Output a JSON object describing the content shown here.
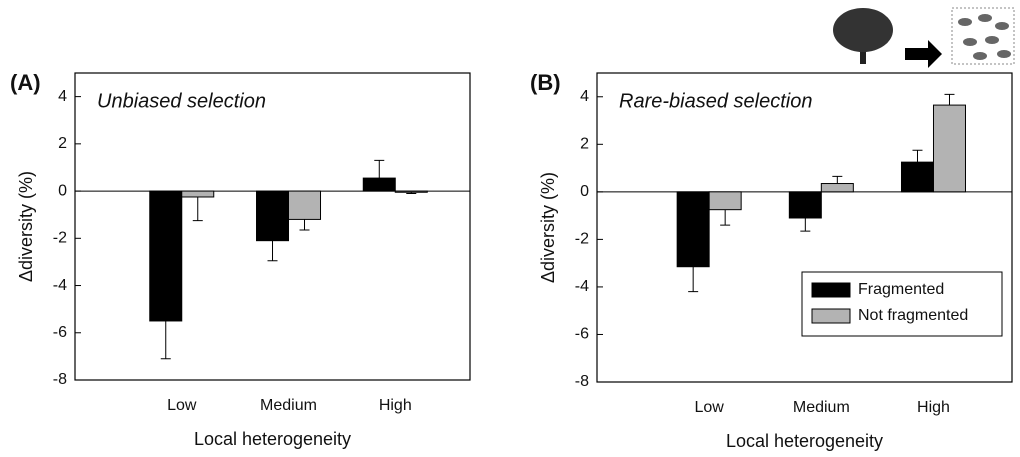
{
  "chart_data": [
    {
      "type": "bar",
      "panel": "(A)",
      "title": "Unbiased selection",
      "xlabel": "Local heterogeneity",
      "ylabel": "Δdiversity (%)",
      "categories": [
        "Low",
        "Medium",
        "High"
      ],
      "series": [
        {
          "name": "Fragmented",
          "color": "#000000",
          "values": [
            -5.5,
            -2.1,
            0.55
          ],
          "errors": [
            1.6,
            0.85,
            0.75
          ]
        },
        {
          "name": "Not fragmented",
          "color": "#b3b3b3",
          "values": [
            -0.25,
            -1.2,
            -0.05
          ],
          "errors": [
            1.0,
            0.45,
            0.05
          ]
        }
      ],
      "ylim": [
        -8,
        5
      ],
      "yticks": [
        -8,
        -6,
        -4,
        -2,
        0,
        2,
        4
      ]
    },
    {
      "type": "bar",
      "panel": "(B)",
      "title": "Rare-biased selection",
      "xlabel": "Local heterogeneity",
      "ylabel": "Δdiversity (%)",
      "categories": [
        "Low",
        "Medium",
        "High"
      ],
      "series": [
        {
          "name": "Fragmented",
          "color": "#000000",
          "values": [
            -3.15,
            -1.1,
            1.25
          ],
          "errors": [
            1.05,
            0.55,
            0.5
          ]
        },
        {
          "name": "Not fragmented",
          "color": "#b3b3b3",
          "values": [
            -0.75,
            0.35,
            3.65
          ],
          "errors": [
            0.65,
            0.3,
            0.45
          ]
        }
      ],
      "ylim": [
        -8,
        5
      ],
      "yticks": [
        -8,
        -6,
        -4,
        -2,
        0,
        2,
        4
      ],
      "legend": "lower right"
    }
  ]
}
